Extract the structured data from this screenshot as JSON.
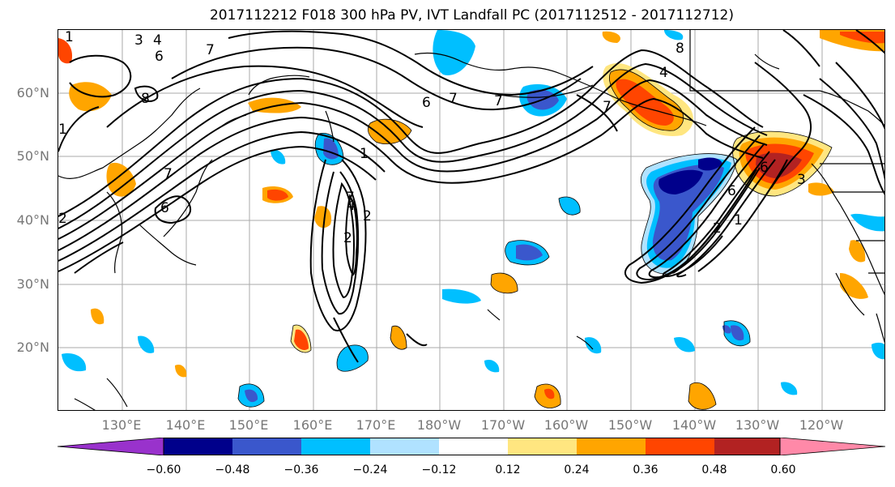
{
  "title": "2017112212 F018 300 hPa PV, IVT Landfall PC (2017112512 - 2017112712)",
  "latitude_labels": [
    "60°N",
    "50°N",
    "40°N",
    "30°N",
    "20°N"
  ],
  "longitude_labels": [
    "130°E",
    "140°E",
    "150°E",
    "160°E",
    "170°E",
    "180°W",
    "170°W",
    "160°W",
    "150°W",
    "140°W",
    "130°W",
    "120°W"
  ],
  "contour_labels": [
    "1",
    "2",
    "3",
    "4",
    "6",
    "7",
    "8"
  ],
  "colorbar": {
    "tick_labels": [
      "−0.60",
      "−0.48",
      "−0.36",
      "−0.24",
      "−0.12",
      "0.12",
      "0.24",
      "0.36",
      "0.48",
      "0.60"
    ],
    "colors": [
      "#9932cc",
      "#00008b",
      "#3a57cc",
      "#00bfff",
      "#b0e2ff",
      "#ffffff",
      "#ffe680",
      "#ffa500",
      "#ff4500",
      "#b22222",
      "#ff89a8"
    ]
  },
  "colors": {
    "contour": "#000000",
    "coast": "#000000",
    "grid": "#aaaaaa",
    "axis_text": "#777777"
  }
}
